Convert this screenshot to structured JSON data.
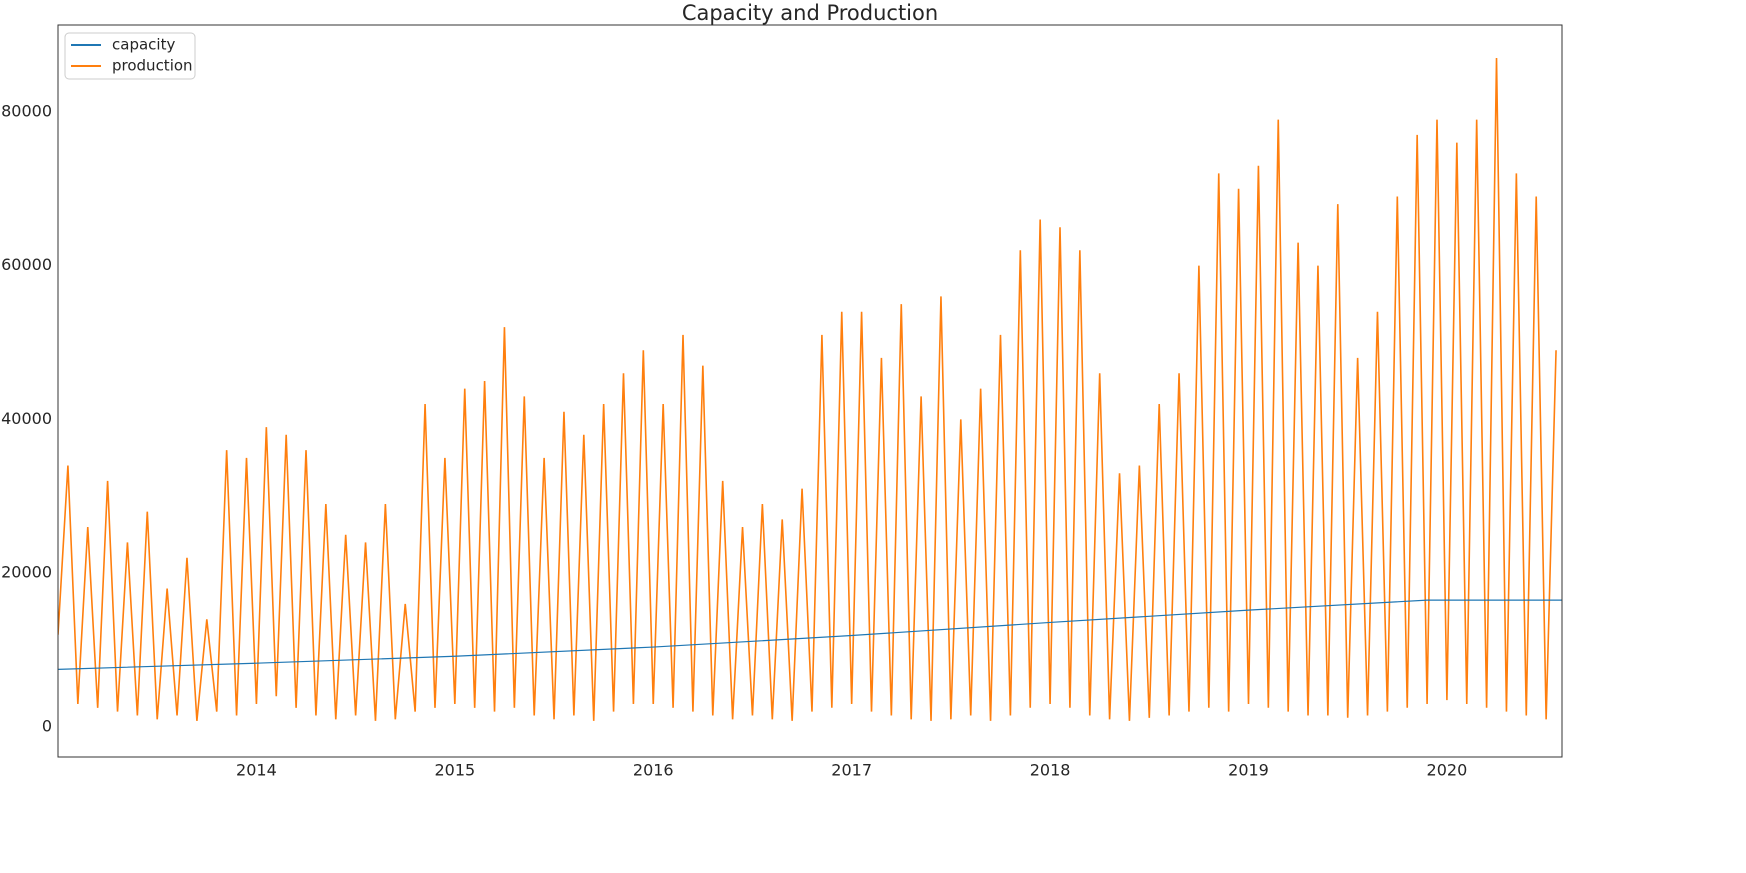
{
  "chart_data": {
    "type": "line",
    "title": "Capacity and Production",
    "xlim": [
      2013.0,
      2020.58
    ],
    "xticks": [
      2014,
      2015,
      2016,
      2017,
      2018,
      2019,
      2020
    ],
    "ylim": [
      -3900,
      91300
    ],
    "yticks": [
      0,
      20000,
      40000,
      60000,
      80000
    ],
    "grid": false,
    "legend": "upper left",
    "series": [
      {
        "name": "capacity",
        "color": "#1f77b4",
        "x": [
          2013,
          2014,
          2015,
          2016,
          2017,
          2018,
          2019,
          2019.9,
          2020.58
        ],
        "values": [
          7500,
          8300,
          9200,
          10400,
          11900,
          13600,
          15200,
          16500,
          16500
        ]
      },
      {
        "name": "production",
        "color": "#ff7f0e",
        "x": [
          2013,
          2013.05,
          2013.1,
          2013.15,
          2013.2,
          2013.25,
          2013.3,
          2013.35,
          2013.4,
          2013.45,
          2013.5,
          2013.55,
          2013.6,
          2013.65,
          2013.7,
          2013.75,
          2013.8,
          2013.85,
          2013.9,
          2013.95,
          2014,
          2014.05,
          2014.1,
          2014.15,
          2014.2,
          2014.25,
          2014.3,
          2014.35,
          2014.4,
          2014.45,
          2014.5,
          2014.55,
          2014.6,
          2014.65,
          2014.7,
          2014.75,
          2014.8,
          2014.85,
          2014.9,
          2014.95,
          2015,
          2015.05,
          2015.1,
          2015.15,
          2015.2,
          2015.25,
          2015.3,
          2015.35,
          2015.4,
          2015.45,
          2015.5,
          2015.55,
          2015.6,
          2015.65,
          2015.7,
          2015.75,
          2015.8,
          2015.85,
          2015.9,
          2015.95,
          2016,
          2016.05,
          2016.1,
          2016.15,
          2016.2,
          2016.25,
          2016.3,
          2016.35,
          2016.4,
          2016.45,
          2016.5,
          2016.55,
          2016.6,
          2016.65,
          2016.7,
          2016.75,
          2016.8,
          2016.85,
          2016.9,
          2016.95,
          2017,
          2017.05,
          2017.1,
          2017.15,
          2017.2,
          2017.25,
          2017.3,
          2017.35,
          2017.4,
          2017.45,
          2017.5,
          2017.55,
          2017.6,
          2017.65,
          2017.7,
          2017.75,
          2017.8,
          2017.85,
          2017.9,
          2017.95,
          2018,
          2018.05,
          2018.1,
          2018.15,
          2018.2,
          2018.25,
          2018.3,
          2018.35,
          2018.4,
          2018.45,
          2018.5,
          2018.55,
          2018.6,
          2018.65,
          2018.7,
          2018.75,
          2018.8,
          2018.85,
          2018.9,
          2018.95,
          2019,
          2019.05,
          2019.1,
          2019.15,
          2019.2,
          2019.25,
          2019.3,
          2019.35,
          2019.4,
          2019.45,
          2019.5,
          2019.55,
          2019.6,
          2019.65,
          2019.7,
          2019.75,
          2019.8,
          2019.85,
          2019.9,
          2019.95,
          2020,
          2020.05,
          2020.1,
          2020.15,
          2020.2,
          2020.25,
          2020.3,
          2020.35,
          2020.4,
          2020.45,
          2020.5,
          2020.55
        ],
        "values": [
          12000,
          34000,
          3000,
          26000,
          2500,
          32000,
          2000,
          24000,
          1500,
          28000,
          1000,
          18000,
          1500,
          22000,
          800,
          14000,
          2000,
          36000,
          1500,
          35000,
          3000,
          39000,
          4000,
          38000,
          2500,
          36000,
          1500,
          29000,
          1000,
          25000,
          1500,
          24000,
          800,
          29000,
          1000,
          16000,
          2000,
          42000,
          2500,
          35000,
          3000,
          44000,
          2500,
          45000,
          2000,
          52000,
          2500,
          43000,
          1500,
          35000,
          1000,
          41000,
          1500,
          38000,
          800,
          42000,
          2000,
          46000,
          3000,
          49000,
          3000,
          42000,
          2500,
          51000,
          2000,
          47000,
          1500,
          32000,
          1000,
          26000,
          1500,
          29000,
          1000,
          27000,
          800,
          31000,
          2000,
          51000,
          2500,
          54000,
          3000,
          54000,
          2000,
          48000,
          1500,
          55000,
          1000,
          43000,
          800,
          56000,
          1000,
          40000,
          1500,
          44000,
          800,
          51000,
          1500,
          62000,
          2500,
          66000,
          3000,
          65000,
          2500,
          62000,
          1500,
          46000,
          1000,
          33000,
          800,
          34000,
          1200,
          42000,
          1500,
          46000,
          2000,
          60000,
          2500,
          72000,
          2000,
          70000,
          3000,
          73000,
          2500,
          79000,
          2000,
          63000,
          1500,
          60000,
          1500,
          68000,
          1200,
          48000,
          1500,
          54000,
          2000,
          69000,
          2500,
          77000,
          3000,
          79000,
          3500,
          76000,
          3000,
          79000,
          2500,
          87000,
          2000,
          72000,
          1500,
          69000,
          1000,
          49000
        ]
      }
    ]
  }
}
